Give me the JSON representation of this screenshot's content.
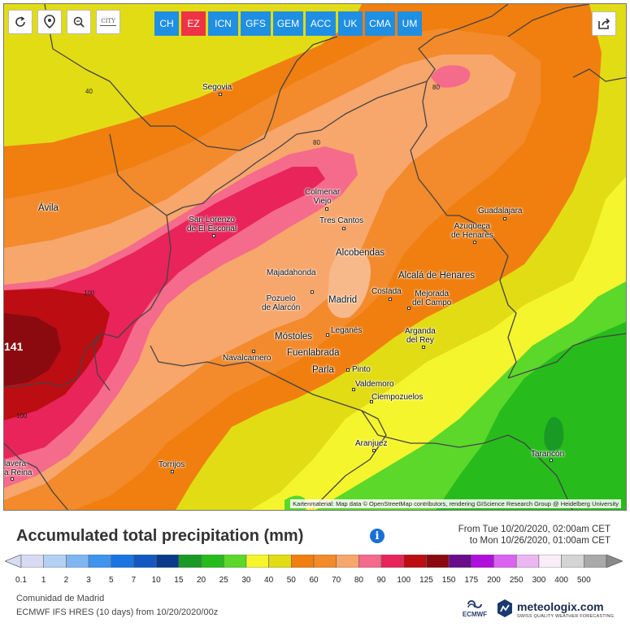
{
  "toolbar": {
    "tools": [
      {
        "name": "refresh-button",
        "icon": "refresh-icon"
      },
      {
        "name": "location-button",
        "icon": "map-pin-icon"
      },
      {
        "name": "zoom-button",
        "icon": "zoom-icon"
      },
      {
        "name": "city-toggle-button",
        "icon": "city-icon",
        "label": "CITY"
      }
    ],
    "models": [
      {
        "label": "CH",
        "color": "#1e8fe3",
        "active": false
      },
      {
        "label": "EZ",
        "color": "#ee3344",
        "active": true
      },
      {
        "label": "ICN",
        "color": "#1e8fe3",
        "active": false
      },
      {
        "label": "GFS",
        "color": "#1e8fe3",
        "active": false
      },
      {
        "label": "GEM",
        "color": "#1e8fe3",
        "active": false
      },
      {
        "label": "ACC",
        "color": "#1e8fe3",
        "active": false
      },
      {
        "label": "UK",
        "color": "#1e8fe3",
        "active": false
      },
      {
        "label": "CMA",
        "color": "#1e8fe3",
        "active": false
      },
      {
        "label": "UM",
        "color": "#1e8fe3",
        "active": false
      }
    ],
    "share_icon": "share-icon"
  },
  "map": {
    "cities": [
      {
        "name": "Segovia",
        "id": "segovia"
      },
      {
        "name": "Ávila",
        "id": "avila"
      },
      {
        "name": "Colmenar Viejo",
        "lines": [
          "Colmenar",
          "Viejo"
        ],
        "id": "colmenar-viejo"
      },
      {
        "name": "San Lorenzo de El Escorial",
        "lines": [
          "San Lorenzo",
          "de El Escorial"
        ],
        "id": "san-lorenzo"
      },
      {
        "name": "Tres Cantos",
        "id": "tres-cantos"
      },
      {
        "name": "Guadalajara",
        "id": "guadalajara"
      },
      {
        "name": "Azuqueca de Henares",
        "lines": [
          "Azuqueca",
          "de Henares"
        ],
        "id": "azuqueca"
      },
      {
        "name": "Alcobendas",
        "id": "alcobendas"
      },
      {
        "name": "Majadahonda",
        "id": "majadahonda"
      },
      {
        "name": "Alcalá de Henares",
        "id": "alcala"
      },
      {
        "name": "Pozuelo de Alarcón",
        "lines": [
          "Pozuelo",
          "de Alarcón"
        ],
        "id": "pozuelo"
      },
      {
        "name": "Madrid",
        "id": "madrid"
      },
      {
        "name": "Coslada",
        "id": "coslada"
      },
      {
        "name": "Mejorada del Campo",
        "lines": [
          "Mejorada",
          "del Campo"
        ],
        "id": "mejorada"
      },
      {
        "name": "Móstoles",
        "id": "mostoles"
      },
      {
        "name": "Leganés",
        "id": "leganes"
      },
      {
        "name": "Arganda del Rey",
        "lines": [
          "Arganda",
          "del Rey"
        ],
        "id": "arganda"
      },
      {
        "name": "Navalcarnero",
        "id": "navalcarnero"
      },
      {
        "name": "Fuenlabrada",
        "id": "fuenlabrada"
      },
      {
        "name": "Parla",
        "id": "parla"
      },
      {
        "name": "Pinto",
        "id": "pinto"
      },
      {
        "name": "Valdemoro",
        "id": "valdemoro"
      },
      {
        "name": "Ciempozuelos",
        "id": "ciempozuelos"
      },
      {
        "name": "Aranjuez",
        "id": "aranjuez"
      },
      {
        "name": "Torrijos",
        "id": "torrijos"
      },
      {
        "name": "Tarancón",
        "id": "tarancon"
      },
      {
        "name": "Talavera de la Reina",
        "lines": [
          "lavera",
          "a Reina"
        ],
        "id": "talavera"
      }
    ],
    "isolines": [
      "40",
      "80",
      "80",
      "100",
      "100"
    ],
    "max_value": "141",
    "attribution": "Kartenmaterial: Map data © OpenStreetMap contributors, rendering GIScience Research Group @ Heidelberg University"
  },
  "title": "Accumulated total precipitation (mm)",
  "period": {
    "from": "From Tue 10/20/2020, 02:00am CET",
    "to": "to Mon 10/26/2020, 01:00am CET"
  },
  "legend": {
    "values": [
      "0.1",
      "1",
      "2",
      "3",
      "5",
      "7",
      "10",
      "15",
      "20",
      "25",
      "30",
      "40",
      "50",
      "60",
      "70",
      "80",
      "90",
      "100",
      "125",
      "150",
      "175",
      "200",
      "250",
      "300",
      "400",
      "500"
    ],
    "colors": [
      "#d7dcf2",
      "#b4d0f5",
      "#7fb6f2",
      "#3f94ee",
      "#1a74e2",
      "#1258c0",
      "#0a3a8c",
      "#199a24",
      "#27bc1c",
      "#5bd82a",
      "#f5f52e",
      "#e2dc14",
      "#f07f10",
      "#f38a2c",
      "#f7a66c",
      "#f56b8b",
      "#e8245a",
      "#bb0d12",
      "#8a0a10",
      "#6a0c8c",
      "#b010dc",
      "#da64f0",
      "#ecb6f3",
      "#f9eef8",
      "#d4d4d4",
      "#a9a9a9"
    ]
  },
  "footer": {
    "region": "Comunidad de Madrid",
    "model_run": "ECMWF IFS HRES  (10 days) from 10/20/2020/00z",
    "ecmwf_label": "ECMWF",
    "brand": "meteologix.com",
    "brand_tagline": "SWISS QUALITY WEATHER FORECASTING"
  }
}
